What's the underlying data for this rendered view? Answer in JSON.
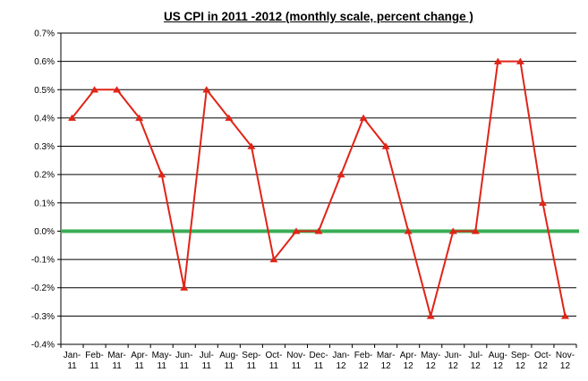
{
  "chart_data": {
    "type": "line",
    "title": "US CPI in 2011 -2012 (monthly scale, percent change )",
    "categories": [
      "Jan-11",
      "Feb-11",
      "Mar-11",
      "Apr-11",
      "May-11",
      "Jun-11",
      "Jul-11",
      "Aug-11",
      "Sep-11",
      "Oct-11",
      "Nov-11",
      "Dec-11",
      "Jan-12",
      "Feb-12",
      "Mar-12",
      "Apr-12",
      "May-12",
      "Jun-12",
      "Jul-12",
      "Aug-12",
      "Sep-12",
      "Oct-12",
      "Nov-12"
    ],
    "values": [
      0.4,
      0.5,
      0.5,
      0.4,
      0.2,
      -0.2,
      0.5,
      0.4,
      0.3,
      -0.1,
      0.0,
      0.0,
      0.2,
      0.4,
      0.3,
      0.0,
      -0.3,
      0.0,
      0.0,
      0.6,
      0.6,
      0.1,
      -0.3
    ],
    "ylim": [
      -0.4,
      0.7
    ],
    "ytick_labels": [
      "0.7%",
      "0.6%",
      "0.5%",
      "0.4%",
      "0.3%",
      "0.2%",
      "0.1%",
      "0.0%",
      "-0.1%",
      "-0.2%",
      "-0.3%",
      "-0.4%"
    ],
    "grid": "horizontal",
    "legend": "none",
    "marker": "triangle-up",
    "zero_line_value": 0.0,
    "colors": {
      "line": "#e02417",
      "marker": "#e02417",
      "zero_line": "#3aac54",
      "grid": "#000000",
      "axis": "#000000",
      "text": "#000000",
      "background": "#ffffff"
    }
  }
}
